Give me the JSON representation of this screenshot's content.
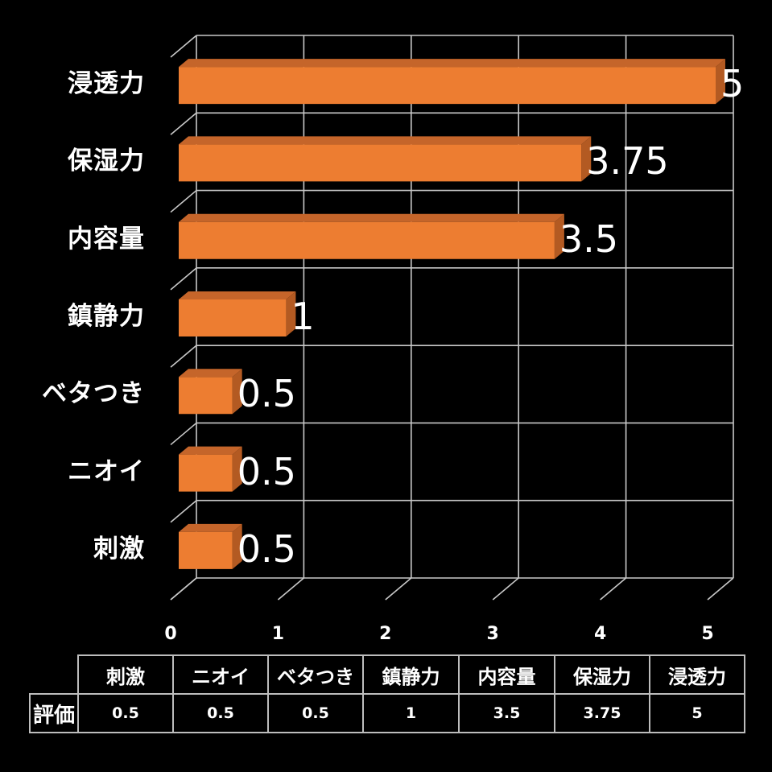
{
  "chart_data": {
    "type": "bar",
    "orientation": "horizontal",
    "style": "3d",
    "categories": [
      "刺激",
      "ニオイ",
      "ベタつき",
      "鎮静力",
      "内容量",
      "保湿力",
      "浸透力"
    ],
    "series": [
      {
        "name": "評価",
        "values": [
          0.5,
          0.5,
          0.5,
          1,
          3.5,
          3.75,
          5
        ]
      }
    ],
    "title": "",
    "xlabel": "",
    "ylabel": "",
    "xlim": [
      0,
      5
    ],
    "xticks": [
      "0",
      "1",
      "2",
      "3",
      "4",
      "5"
    ],
    "grid": true,
    "data_labels": true,
    "legend": "data table below chart"
  },
  "colors": {
    "background": "#000000",
    "bar_front": "#ED7D31",
    "bar_top": "#C5652A",
    "bar_side": "#B35A22",
    "grid": "#c8c8c8",
    "text": "#ffffff"
  },
  "bars_top_to_bottom": [
    {
      "label": "浸透力",
      "value": 5,
      "value_label": "5"
    },
    {
      "label": "保湿力",
      "value": 3.75,
      "value_label": "3.75"
    },
    {
      "label": "内容量",
      "value": 3.5,
      "value_label": "3.5"
    },
    {
      "label": "鎮静力",
      "value": 1,
      "value_label": "1"
    },
    {
      "label": "ベタつき",
      "value": 0.5,
      "value_label": "0.5"
    },
    {
      "label": "ニオイ",
      "value": 0.5,
      "value_label": "0.5"
    },
    {
      "label": "刺激",
      "value": 0.5,
      "value_label": "0.5"
    }
  ],
  "axis": {
    "ticks": [
      "0",
      "1",
      "2",
      "3",
      "4",
      "5"
    ]
  },
  "data_table": {
    "row_header": "評価",
    "headers": [
      "刺激",
      "ニオイ",
      "ベタつき",
      "鎮静力",
      "内容量",
      "保湿力",
      "浸透力"
    ],
    "values": [
      "0.5",
      "0.5",
      "0.5",
      "1",
      "3.5",
      "3.75",
      "5"
    ]
  }
}
